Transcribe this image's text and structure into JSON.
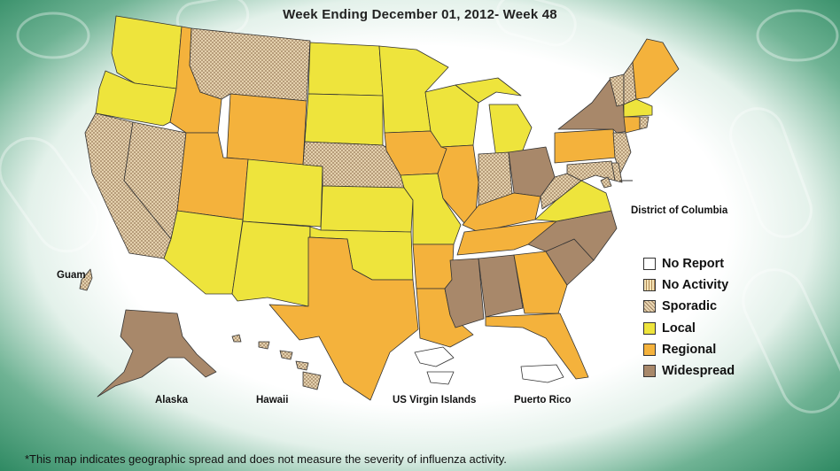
{
  "title": "Week Ending December 01, 2012- Week 48",
  "legend": {
    "items": [
      {
        "key": "no_report",
        "label": "No Report",
        "color": "#ffffff",
        "pattern": "none"
      },
      {
        "key": "no_activity",
        "label": "No Activity",
        "color": "#f2dca8",
        "pattern": "vlines"
      },
      {
        "key": "sporadic",
        "label": "Sporadic",
        "color": "#e8cfa6",
        "pattern": "cross"
      },
      {
        "key": "local",
        "label": "Local",
        "color": "#eee43c",
        "pattern": "none"
      },
      {
        "key": "regional",
        "label": "Regional",
        "color": "#f4b23c",
        "pattern": "none"
      },
      {
        "key": "widespread",
        "label": "Widespread",
        "color": "#a8886a",
        "pattern": "none"
      }
    ]
  },
  "labels": {
    "dc": "District of Columbia",
    "guam": "Guam",
    "alaska": "Alaska",
    "hawaii": "Hawaii",
    "usvi": "US Virgin Islands",
    "pr": "Puerto Rico"
  },
  "footnote": "*This map indicates geographic spread and does not measure the severity of influenza activity.",
  "map_data": {
    "Washington": "local",
    "Oregon": "local",
    "California": "sporadic",
    "Nevada": "sporadic",
    "Idaho": "regional",
    "Montana": "sporadic",
    "Wyoming": "regional",
    "Utah": "regional",
    "Arizona": "local",
    "Colorado": "local",
    "New Mexico": "local",
    "North Dakota": "local",
    "South Dakota": "local",
    "Nebraska": "sporadic",
    "Kansas": "local",
    "Oklahoma": "local",
    "Texas": "regional",
    "Minnesota": "local",
    "Iowa": "regional",
    "Missouri": "local",
    "Arkansas": "regional",
    "Louisiana": "regional",
    "Wisconsin": "local",
    "Illinois": "regional",
    "Michigan": "local",
    "Indiana": "sporadic",
    "Ohio": "widespread",
    "Kentucky": "regional",
    "Tennessee": "regional",
    "Mississippi": "widespread",
    "Alabama": "widespread",
    "Georgia": "regional",
    "Florida": "regional",
    "South Carolina": "widespread",
    "North Carolina": "widespread",
    "Virginia": "local",
    "West Virginia": "sporadic",
    "Pennsylvania": "regional",
    "New York": "widespread",
    "Vermont": "sporadic",
    "New Hampshire": "sporadic",
    "Maine": "regional",
    "Massachusetts": "local",
    "Connecticut": "regional",
    "Rhode Island": "sporadic",
    "New Jersey": "sporadic",
    "Delaware": "sporadic",
    "Maryland": "sporadic",
    "District of Columbia": "sporadic",
    "Alaska": "widespread",
    "Hawaii": "sporadic",
    "Guam": "sporadic",
    "US Virgin Islands": "no_report",
    "Puerto Rico": "no_report"
  }
}
